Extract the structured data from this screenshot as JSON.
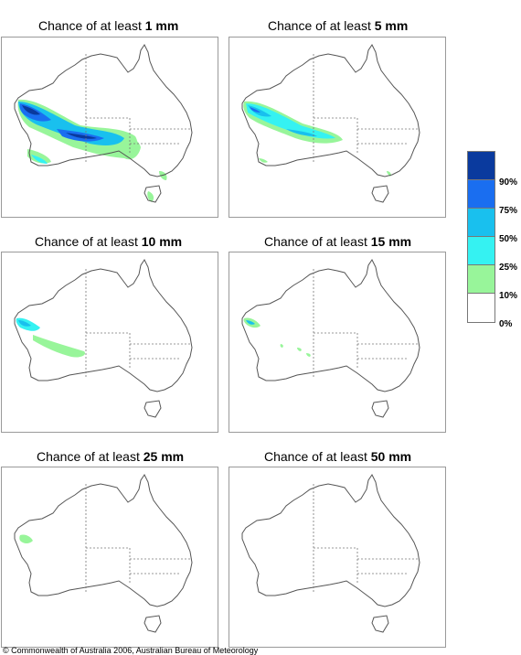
{
  "panels": [
    {
      "prefix": "Chance of at least ",
      "amount": "1 mm"
    },
    {
      "prefix": "Chance of at least ",
      "amount": "5 mm"
    },
    {
      "prefix": "Chance of at least ",
      "amount": "10 mm"
    },
    {
      "prefix": "Chance of at least ",
      "amount": "15 mm"
    },
    {
      "prefix": "Chance of at least ",
      "amount": "25 mm"
    },
    {
      "prefix": "Chance of at least ",
      "amount": "50 mm"
    }
  ],
  "legend": {
    "labels": [
      "90%",
      "75%",
      "50%",
      "25%",
      "10%",
      "0%"
    ],
    "colors": [
      "#0a3a9e",
      "#1a6ef0",
      "#19c0ee",
      "#35f2f2",
      "#98f59a",
      "#ffffff"
    ]
  },
  "footer": "© Commonwealth of Australia 2006, Australian Bureau of Meteorology"
}
